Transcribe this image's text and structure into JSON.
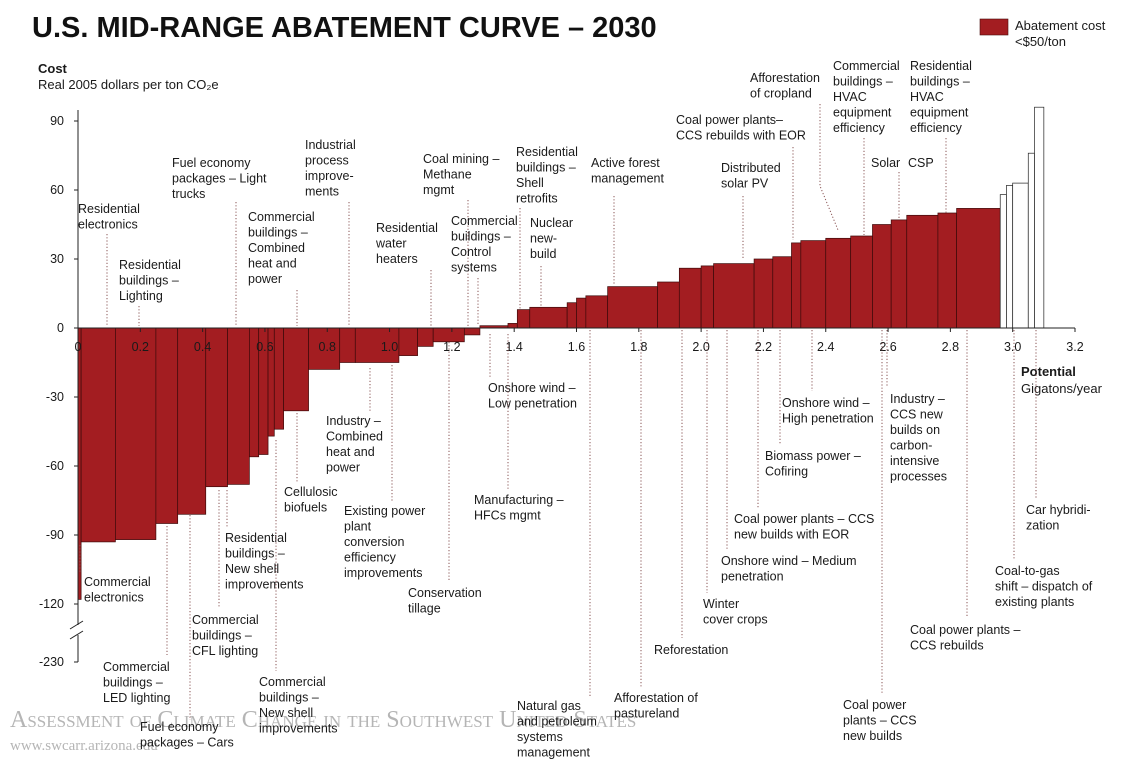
{
  "chart_data": {
    "type": "abatement_curve",
    "title": "U.S. MID-RANGE ABATEMENT CURVE – 2030",
    "y_label": "Cost",
    "y_unit": "Real 2005 dollars per ton CO₂e",
    "x_label": "Potential",
    "x_unit": "Gigatons/year",
    "series": [
      {
        "name": "Abatement cost <$50/ton",
        "color": "#a31d21",
        "bins": [
          0,
          0.01,
          0.12,
          0.25,
          0.32,
          0.41,
          0.48,
          0.55,
          0.58,
          0.61,
          0.63,
          0.66,
          0.74,
          0.84,
          0.89,
          1.03,
          1.09,
          1.14,
          1.24,
          1.29,
          1.38,
          1.41,
          1.45,
          1.57,
          1.6,
          1.63,
          1.7,
          1.86,
          1.93,
          2.0,
          2.04,
          2.17,
          2.23,
          2.29,
          2.32,
          2.4,
          2.48,
          2.55,
          2.61,
          2.66,
          2.76,
          2.82,
          2.96
        ],
        "values": [
          -118,
          -93,
          -92,
          -85,
          -81,
          -69,
          -68,
          -56,
          -55,
          -47,
          -44,
          -36,
          -18,
          -15,
          -15,
          -12,
          -8,
          -6,
          -3,
          1,
          2,
          8,
          9,
          11,
          13,
          14,
          18,
          20,
          26,
          27,
          28,
          30,
          31,
          37,
          38,
          39,
          40,
          45,
          47,
          49,
          50,
          52
        ]
      },
      {
        "color": "#ffffff",
        "bins": [
          2.96,
          2.98,
          3.0,
          3.05,
          3.07,
          3.1
        ],
        "values": [
          58,
          62,
          63,
          76,
          96
        ]
      }
    ],
    "xlim": [
      0,
      3.2
    ],
    "xticks": [
      0,
      0.2,
      0.4,
      0.6,
      0.8,
      {
        "value": 1,
        "label": "1.0"
      },
      1.2,
      1.4,
      1.6,
      1.8,
      {
        "value": 2,
        "label": "2.0"
      },
      2.2,
      2.4,
      2.6,
      2.8,
      {
        "value": 3,
        "label": "3.0"
      },
      3.2
    ],
    "ylim": [
      -230,
      100
    ],
    "yticks": [
      90,
      60,
      30,
      0,
      -30,
      -60,
      -90,
      -120,
      -230
    ],
    "y_axis_break": true,
    "annotations": [
      {
        "lines": [
          "Residential",
          "electronics"
        ]
      },
      {
        "lines": [
          "Residential",
          "buildings –",
          "Lighting"
        ]
      },
      {
        "lines": [
          "Fuel economy",
          "packages – Light",
          "trucks"
        ]
      },
      {
        "lines": [
          "Commercial",
          "buildings –",
          "Combined",
          "heat and",
          "power"
        ]
      },
      {
        "lines": [
          "Industrial",
          "process",
          "improve-",
          "ments"
        ]
      },
      {
        "lines": [
          "Residential",
          "water",
          "heaters"
        ]
      },
      {
        "lines": [
          "Coal mining –",
          "Methane",
          "mgmt"
        ]
      },
      {
        "lines": [
          "Commercial",
          "buildings –",
          "Control",
          "systems"
        ]
      },
      {
        "lines": [
          "Residential",
          "buildings –",
          "Shell",
          "retrofits"
        ]
      },
      {
        "lines": [
          "Nuclear",
          "new-",
          "build"
        ]
      },
      {
        "lines": [
          "Active forest",
          "management"
        ]
      },
      {
        "lines": [
          "Coal power plants–",
          "CCS rebuilds with EOR"
        ]
      },
      {
        "lines": [
          "Afforestation",
          "of cropland"
        ]
      },
      {
        "lines": [
          "Distributed",
          "solar PV"
        ]
      },
      {
        "lines": [
          "Commercial",
          "buildings –",
          "HVAC",
          "equipment",
          "efficiency"
        ]
      },
      {
        "lines": [
          "Residential",
          "buildings –",
          "HVAC",
          "equipment",
          "efficiency"
        ]
      },
      {
        "lines": [
          "Solar"
        ]
      },
      {
        "lines": [
          "CSP"
        ]
      },
      {
        "lines": [
          "Commercial",
          "electronics"
        ]
      },
      {
        "lines": [
          "Commercial",
          "buildings –",
          "LED lighting"
        ]
      },
      {
        "lines": [
          "Fuel economy",
          "packages – Cars"
        ]
      },
      {
        "lines": [
          "Commercial",
          "buildings –",
          "CFL lighting"
        ]
      },
      {
        "lines": [
          "Residential",
          "buildings –",
          "New shell",
          "improvements"
        ]
      },
      {
        "lines": [
          "Commercial",
          "buildings –",
          "New shell",
          "improvements"
        ]
      },
      {
        "lines": [
          "Cellulosic",
          "biofuels"
        ]
      },
      {
        "lines": [
          "Industry –",
          "Combined",
          "heat and",
          "power"
        ]
      },
      {
        "lines": [
          "Existing power",
          "plant",
          "conversion",
          "efficiency",
          "improvements"
        ]
      },
      {
        "lines": [
          "Conservation",
          "tillage"
        ]
      },
      {
        "lines": [
          "Onshore wind –",
          "Low penetration"
        ]
      },
      {
        "lines": [
          "Manufacturing –",
          "HFCs mgmt"
        ]
      },
      {
        "lines": [
          "Natural gas",
          "and petroleum",
          "systems",
          "management"
        ]
      },
      {
        "lines": [
          "Afforestation of",
          "pastureland"
        ]
      },
      {
        "lines": [
          "Reforestation"
        ]
      },
      {
        "lines": [
          "Winter",
          "cover crops"
        ]
      },
      {
        "lines": [
          "Onshore wind – Medium",
          "penetration"
        ]
      },
      {
        "lines": [
          "Coal power plants – CCS",
          "new builds with EOR"
        ]
      },
      {
        "lines": [
          "Biomass  power –",
          "Cofiring"
        ]
      },
      {
        "lines": [
          "Onshore wind –",
          "High penetration"
        ]
      },
      {
        "lines": [
          "Industry –",
          "CCS new",
          "builds on",
          "carbon-",
          "intensive",
          "processes"
        ]
      },
      {
        "lines": [
          "Coal power",
          "plants – CCS",
          "new builds"
        ]
      },
      {
        "lines": [
          "Coal power plants –",
          "CCS rebuilds"
        ]
      },
      {
        "lines": [
          "Coal-to-gas",
          "shift – dispatch of",
          "existing plants"
        ]
      },
      {
        "lines": [
          "Car hybridi-",
          "zation"
        ]
      }
    ],
    "watermark": {
      "title": "Assessment of Climate Change in the Southwest United States",
      "url": "www.swcarr.arizona.edu"
    }
  }
}
